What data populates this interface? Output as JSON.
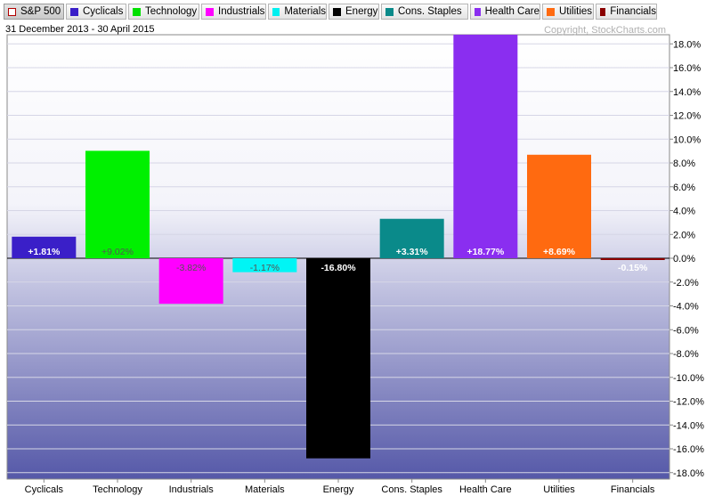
{
  "legend": [
    {
      "label": "S&P 500",
      "color": "#b00000",
      "hollow": true,
      "active": true
    },
    {
      "label": "Cyclicals",
      "color": "#3a1fc8"
    },
    {
      "label": "Technology",
      "color": "#00e000"
    },
    {
      "label": "Industrials",
      "color": "#ff00ff"
    },
    {
      "label": "Materials",
      "color": "#00f0f0"
    },
    {
      "label": "Energy",
      "color": "#000000"
    },
    {
      "label": "Cons. Staples",
      "color": "#0a8a8a"
    },
    {
      "label": "Health Care",
      "color": "#8a2ef0"
    },
    {
      "label": "Utilities",
      "color": "#ff6a10"
    },
    {
      "label": "Financials",
      "color": "#8a0000"
    }
  ],
  "date_range": "31 December 2013 - 30 April 2015",
  "copyright": "Copyright, StockCharts.com",
  "chart_data": {
    "type": "bar",
    "categories": [
      "Cyclicals",
      "Technology",
      "Industrials",
      "Materials",
      "Energy",
      "Cons. Staples",
      "Health Care",
      "Utilities",
      "Financials"
    ],
    "values": [
      1.81,
      9.02,
      -3.82,
      -1.17,
      -16.8,
      3.31,
      18.77,
      8.69,
      -0.15
    ],
    "labels": [
      "+1.81%",
      "+9.02%",
      "-3.82%",
      "-1.17%",
      "-16.80%",
      "+3.31%",
      "+18.77%",
      "+8.69%",
      "-0.15%"
    ],
    "colors": [
      "#3a1fc8",
      "#00f000",
      "#ff00ff",
      "#00f5f5",
      "#000000",
      "#0a8a8a",
      "#8a2ef0",
      "#ff6a10",
      "#8a0000"
    ],
    "label_colors": [
      "#ffffff",
      "#555555",
      "#555555",
      "#555555",
      "#ffffff",
      "#ffffff",
      "#ffffff",
      "#ffffff",
      "#ffffff"
    ],
    "ylim": [
      -18.0,
      18.0
    ],
    "yticks": [
      18,
      16,
      14,
      12,
      10,
      8,
      6,
      4,
      2,
      0,
      -2,
      -4,
      -6,
      -8,
      -10,
      -12,
      -14,
      -16,
      -18
    ],
    "ytick_labels": [
      "18.0%",
      "16.0%",
      "14.0%",
      "12.0%",
      "10.0%",
      "8.0%",
      "6.0%",
      "4.0%",
      "2.0%",
      "0.0%",
      "-2.0%",
      "-4.0%",
      "-6.0%",
      "-8.0%",
      "-10.0%",
      "-12.0%",
      "-14.0%",
      "-16.0%",
      "-18.0%"
    ],
    "y_axis_side": "right",
    "grid": true,
    "background": "gradient white to slate blue"
  }
}
